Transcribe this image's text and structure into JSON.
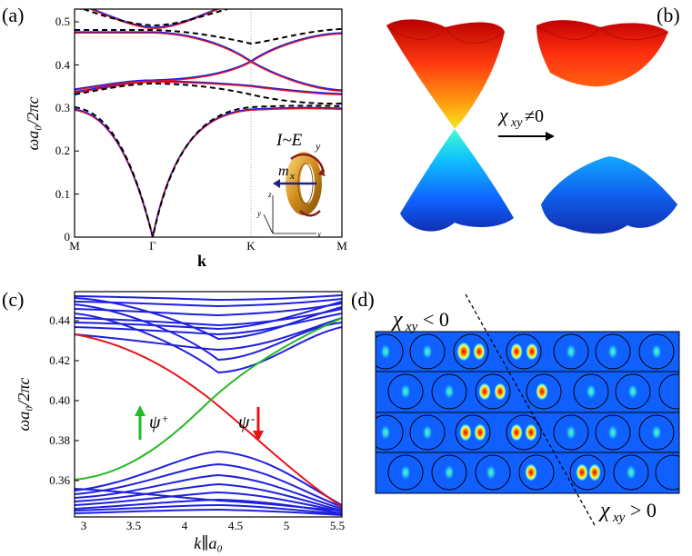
{
  "panels": {
    "a": {
      "label": "(a)",
      "ylabel": "ωa₀/2πc",
      "xlabel": "k",
      "yticks": [
        "0",
        "0.1",
        "0.2",
        "0.3",
        "0.4",
        "0.5"
      ],
      "xticks": [
        "M",
        "Γ",
        "K",
        "M"
      ],
      "inset": {
        "current_label": "I~E",
        "current_sub": "y",
        "moment_label": "m",
        "moment_sub": "x",
        "axes": [
          "x",
          "y",
          "z"
        ]
      }
    },
    "b": {
      "label": "(b)",
      "chi_label": "χ",
      "chi_sub": "xy",
      "chi_cond": "≠0"
    },
    "c": {
      "label": "(c)",
      "ylabel": "ωa₀/2πc",
      "xlabel": "k∥a₀",
      "yticks": [
        "0.36",
        "0.38",
        "0.40",
        "0.42",
        "0.44"
      ],
      "xticks": [
        "3",
        "3.5",
        "4",
        "4.5",
        "5",
        "5.5"
      ],
      "psi_plus": "ψ",
      "psi_plus_sup": "+",
      "psi_minus": "ψ",
      "psi_minus_sup": "-"
    },
    "d": {
      "label": "(d)",
      "chi_sub": "xy",
      "chi_top": "< 0",
      "chi_bottom": "> 0",
      "chi": "χ"
    }
  },
  "colors": {
    "red": "#e8141a",
    "blue": "#1f1fe0",
    "green": "#22bb22",
    "black": "#000000"
  },
  "chart_data": [
    {
      "type": "line",
      "panel": "a",
      "ylabel": "ωa₀/2πc",
      "xlabel": "k",
      "categories": [
        "M",
        "Γ",
        "K",
        "M"
      ],
      "ylim": [
        0,
        0.53
      ],
      "series": [
        {
          "values": [
            0.297,
            0.0,
            0.298,
            0.297
          ]
        },
        {
          "values": [
            0.335,
            0.36,
            0.34,
            0.335
          ]
        },
        {
          "values": [
            0.34,
            0.36,
            0.405,
            0.34
          ]
        },
        {
          "values": [
            0.478,
            0.478,
            0.405,
            0.478
          ]
        },
        {
          "values": [
            0.484,
            0.484,
            0.46,
            0.484
          ]
        }
      ]
    },
    {
      "type": "line",
      "panel": "c",
      "ylabel": "ωa₀/2πc",
      "xlabel": "k∥a₀",
      "xlim": [
        2.85,
        5.5
      ],
      "ylim": [
        0.345,
        0.452
      ],
      "series": [
        {
          "values": [
            [
              2.85,
              0.36
            ],
            [
              4.2,
              0.4
            ],
            [
              5.5,
              0.445
            ]
          ]
        },
        {
          "values": [
            [
              2.85,
              0.441
            ],
            [
              4.2,
              0.4
            ],
            [
              5.5,
              0.347
            ]
          ]
        }
      ]
    }
  ]
}
